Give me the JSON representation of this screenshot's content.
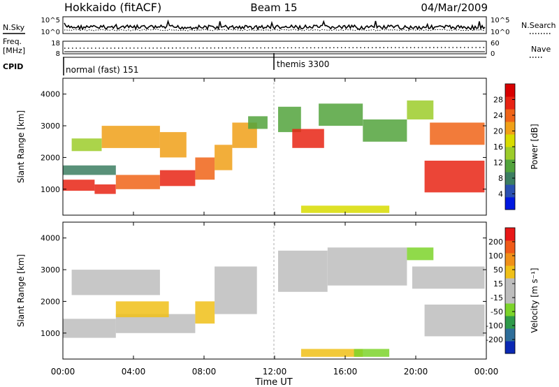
{
  "header": {
    "station": "Hokkaido (fitACF)",
    "beam": "Beam 15",
    "date": "04/Mar/2009"
  },
  "aux_panels": {
    "nsky_label": "N.Sky",
    "nsky_ticks": [
      "10^5",
      "10^0"
    ],
    "nsearch_label": "N.Search",
    "nsearch_ticks": [
      "10^5",
      "10^0"
    ],
    "freq_label_line1": "Freq.",
    "freq_label_line2": "[MHz]",
    "freq_ticks": [
      "18",
      "8"
    ],
    "nave_label": "Nave",
    "nave_ticks": [
      "60",
      "0"
    ],
    "cpid_label": "CPID",
    "cpid_segments": [
      {
        "label": "normal (fast) 151",
        "start_hour": 0,
        "end_hour": 12
      },
      {
        "label": "themis 3300",
        "start_hour": 12,
        "end_hour": 24
      }
    ]
  },
  "chart_data": [
    {
      "type": "heatmap",
      "name": "power-panel",
      "ylabel": "Slant Range [km]",
      "yticks": [
        "1000",
        "2000",
        "3000",
        "4000"
      ],
      "ylim": [
        180,
        4500
      ],
      "colorbar": {
        "label": "Power [dB]",
        "ticks": [
          "4",
          "8",
          "12",
          "16",
          "20",
          "24",
          "28"
        ],
        "colors": [
          "#0018e0",
          "#2a50b0",
          "#3c7e62",
          "#52a33c",
          "#9ccc2a",
          "#d8dc00",
          "#f0a018",
          "#f06418",
          "#e82414",
          "#d80000"
        ]
      },
      "regions": [
        {
          "t0": 0.0,
          "t1": 1.8,
          "r0": 950,
          "r1": 1300,
          "level": 8
        },
        {
          "t0": 1.8,
          "t1": 3.0,
          "r0": 850,
          "r1": 1150,
          "level": 8
        },
        {
          "t0": 3.0,
          "t1": 5.5,
          "r0": 1000,
          "r1": 1450,
          "level": 7
        },
        {
          "t0": 5.5,
          "t1": 7.5,
          "r0": 1100,
          "r1": 1600,
          "level": 8
        },
        {
          "t0": 7.5,
          "t1": 8.6,
          "r0": 1300,
          "r1": 2000,
          "level": 7
        },
        {
          "t0": 2.2,
          "t1": 5.5,
          "r0": 2300,
          "r1": 3000,
          "level": 6
        },
        {
          "t0": 0.5,
          "t1": 2.2,
          "r0": 2200,
          "r1": 2600,
          "level": 4
        },
        {
          "t0": 5.5,
          "t1": 7.0,
          "r0": 2000,
          "r1": 2800,
          "level": 6
        },
        {
          "t0": 8.6,
          "t1": 9.6,
          "r0": 1600,
          "r1": 2400,
          "level": 6
        },
        {
          "t0": 9.6,
          "t1": 11.0,
          "r0": 2300,
          "r1": 3100,
          "level": 6
        },
        {
          "t0": 10.5,
          "t1": 11.6,
          "r0": 2900,
          "r1": 3300,
          "level": 3
        },
        {
          "t0": 0.0,
          "t1": 3.0,
          "r0": 1450,
          "r1": 1750,
          "level": 2
        },
        {
          "t0": 12.2,
          "t1": 13.5,
          "r0": 2800,
          "r1": 3600,
          "level": 3
        },
        {
          "t0": 13.0,
          "t1": 14.8,
          "r0": 2300,
          "r1": 2900,
          "level": 8
        },
        {
          "t0": 14.5,
          "t1": 17.0,
          "r0": 3000,
          "r1": 3700,
          "level": 3
        },
        {
          "t0": 17.0,
          "t1": 19.5,
          "r0": 2500,
          "r1": 3200,
          "level": 3
        },
        {
          "t0": 19.5,
          "t1": 21.0,
          "r0": 3200,
          "r1": 3800,
          "level": 4
        },
        {
          "t0": 20.8,
          "t1": 23.9,
          "r0": 2400,
          "r1": 3100,
          "level": 7
        },
        {
          "t0": 20.5,
          "t1": 23.9,
          "r0": 900,
          "r1": 1900,
          "level": 8
        },
        {
          "t0": 13.5,
          "t1": 18.5,
          "r0": 250,
          "r1": 480,
          "level": 5
        }
      ]
    },
    {
      "type": "heatmap",
      "name": "velocity-panel",
      "ylabel": "Slant Range [km]",
      "yticks": [
        "1000",
        "2000",
        "3000",
        "4000"
      ],
      "ylim": [
        180,
        4500
      ],
      "xticks": [
        "00:00",
        "04:00",
        "08:00",
        "12:00",
        "16:00",
        "20:00",
        "00:00"
      ],
      "xlabel": "Time UT",
      "colorbar": {
        "label": "Velocity [m s⁻¹]",
        "ticks": [
          "200",
          "100",
          "50",
          "15",
          "-15",
          "-50",
          "-100",
          "-200"
        ],
        "colors": [
          "#0a28b4",
          "#2e6e9a",
          "#2e9a4a",
          "#7cd42a",
          "#bdbdbd",
          "#bdbdbd",
          "#f0c018",
          "#f09018",
          "#f05a18",
          "#e81818"
        ]
      },
      "regions": [
        {
          "t0": 0.0,
          "t1": 3.0,
          "r0": 850,
          "r1": 1450,
          "level": 4
        },
        {
          "t0": 3.0,
          "t1": 7.5,
          "r0": 1000,
          "r1": 1600,
          "level": 4
        },
        {
          "t0": 7.5,
          "t1": 8.6,
          "r0": 1300,
          "r1": 2000,
          "level": 6
        },
        {
          "t0": 3.0,
          "t1": 6.0,
          "r0": 1500,
          "r1": 2000,
          "level": 6
        },
        {
          "t0": 0.5,
          "t1": 5.5,
          "r0": 2200,
          "r1": 3000,
          "level": 4
        },
        {
          "t0": 8.6,
          "t1": 11.0,
          "r0": 1600,
          "r1": 3100,
          "level": 4
        },
        {
          "t0": 12.2,
          "t1": 15.0,
          "r0": 2300,
          "r1": 3600,
          "level": 4
        },
        {
          "t0": 15.0,
          "t1": 19.5,
          "r0": 2500,
          "r1": 3700,
          "level": 4
        },
        {
          "t0": 19.5,
          "t1": 21.0,
          "r0": 3300,
          "r1": 3700,
          "level": 3
        },
        {
          "t0": 19.8,
          "t1": 23.9,
          "r0": 2400,
          "r1": 3100,
          "level": 4
        },
        {
          "t0": 20.5,
          "t1": 23.9,
          "r0": 900,
          "r1": 1900,
          "level": 4
        },
        {
          "t0": 13.5,
          "t1": 17.0,
          "r0": 250,
          "r1": 500,
          "level": 6
        },
        {
          "t0": 16.5,
          "t1": 18.5,
          "r0": 250,
          "r1": 500,
          "level": 3
        }
      ]
    }
  ]
}
